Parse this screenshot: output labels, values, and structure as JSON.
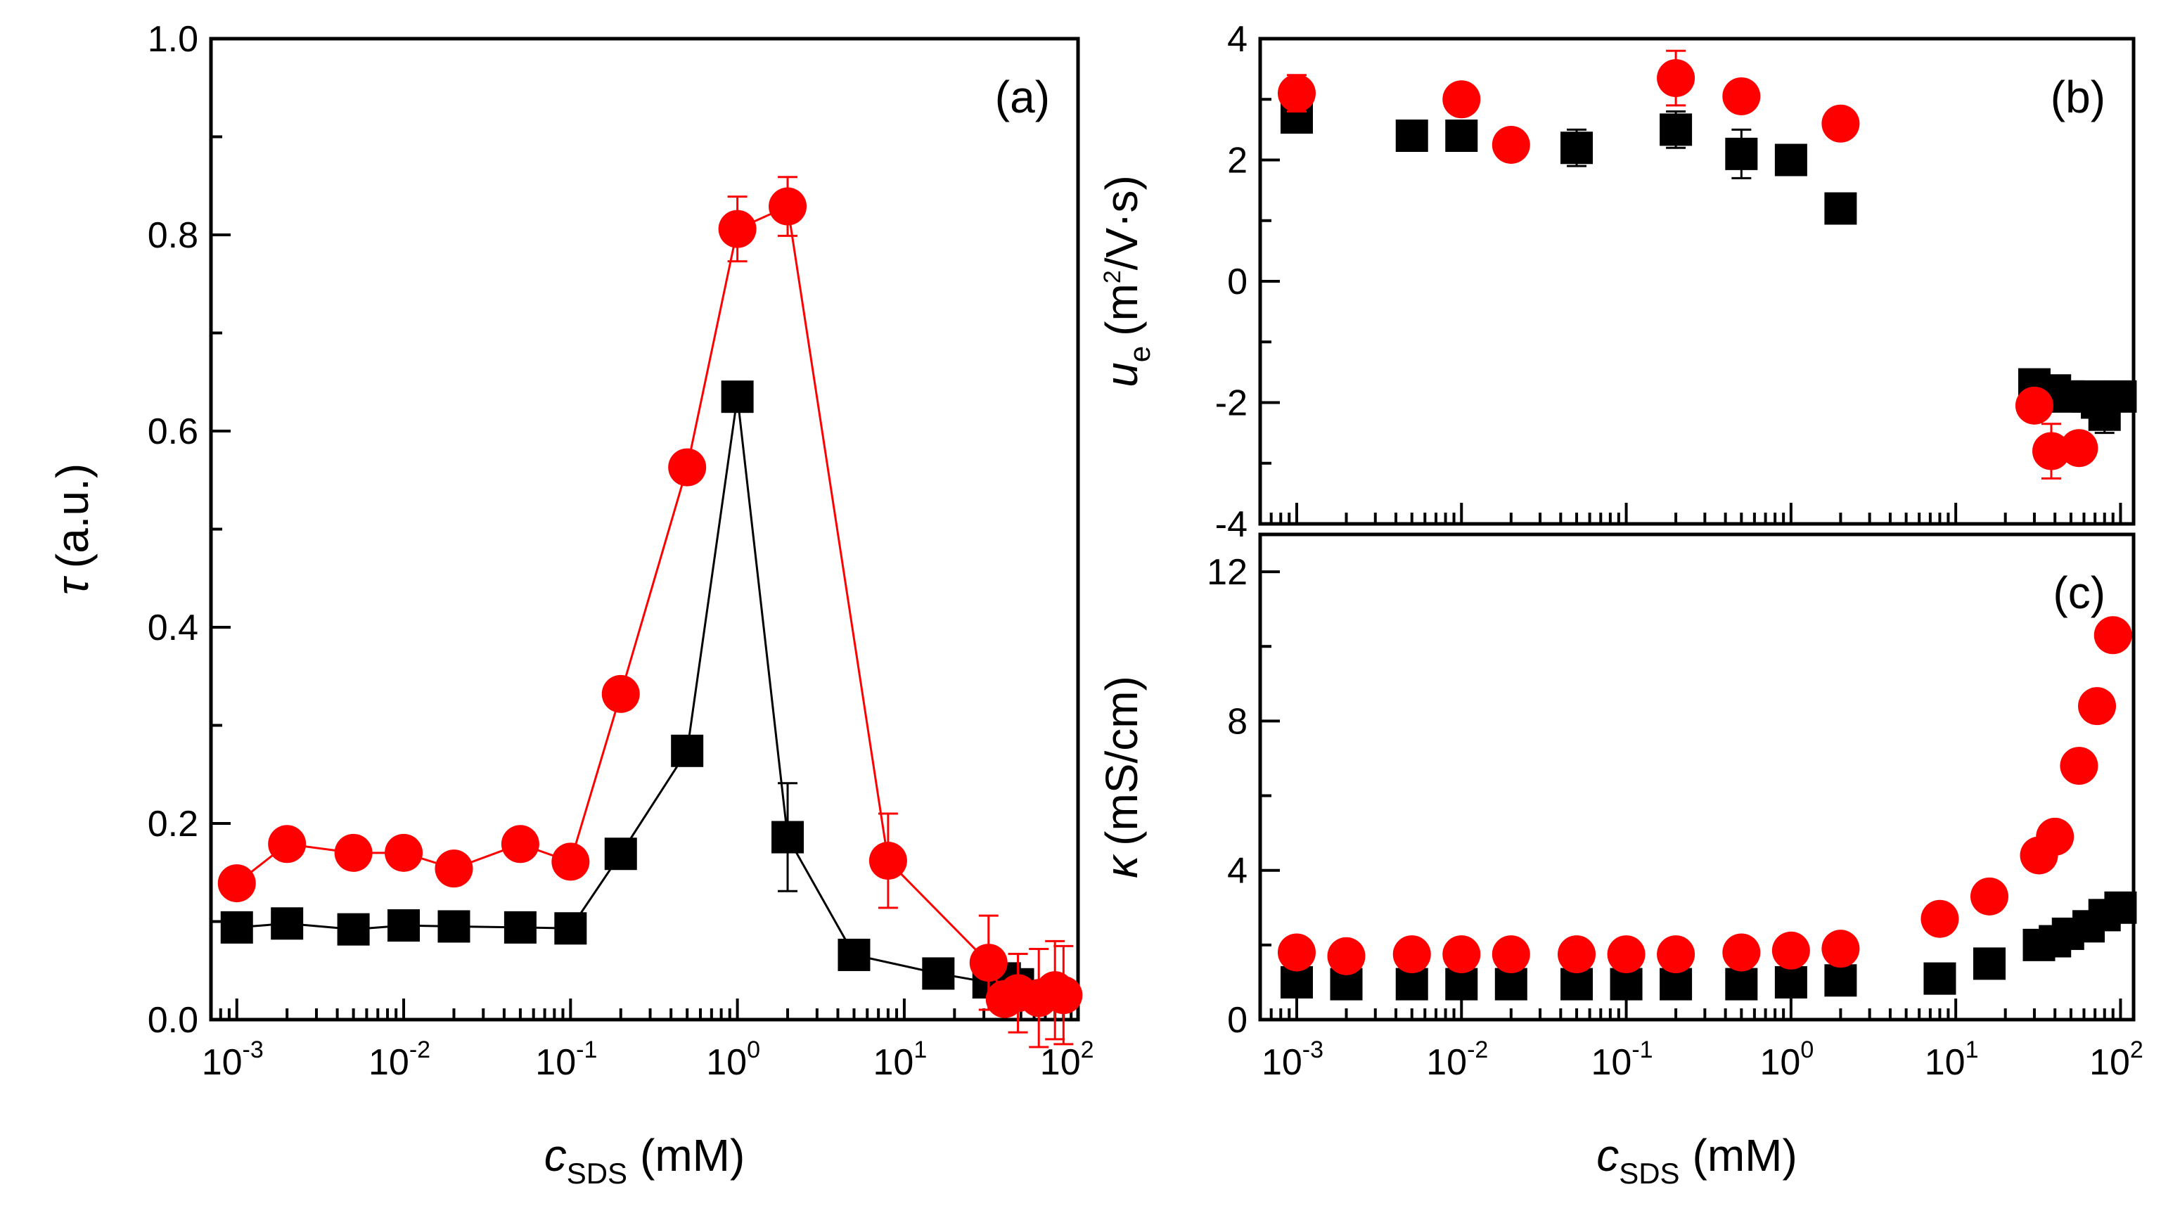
{
  "colors": {
    "black": "#000000",
    "red": "#ff0000"
  },
  "chart_data": [
    {
      "panel": "a",
      "type": "scatter",
      "panel_label": "(a)",
      "xscale": "log",
      "xlim": [
        0.0007,
        110
      ],
      "ylim": [
        0.0,
        1.0
      ],
      "xlabel_main": "c",
      "xlabel_sub": "SDS",
      "xlabel_unit": "(mM)",
      "ylabel_symbol": "τ",
      "ylabel_unit": "(a.u.)",
      "yticks": [
        "0.0",
        "0.2",
        "0.4",
        "0.6",
        "0.8",
        "1.0"
      ],
      "ytick_values": [
        0.0,
        0.2,
        0.4,
        0.6,
        0.8,
        1.0
      ],
      "xticks": [
        {
          "base": "10",
          "exp": "-3",
          "value": 0.001
        },
        {
          "base": "10",
          "exp": "-2",
          "value": 0.01
        },
        {
          "base": "10",
          "exp": "-1",
          "value": 0.1
        },
        {
          "base": "10",
          "exp": "0",
          "value": 1
        },
        {
          "base": "10",
          "exp": "1",
          "value": 10
        },
        {
          "base": "10",
          "exp": "2",
          "value": 100
        }
      ],
      "series": [
        {
          "name": "black squares",
          "marker": "square",
          "color": "#000000",
          "line": true,
          "x": [
            0.001,
            0.002,
            0.005,
            0.01,
            0.02,
            0.05,
            0.1,
            0.2,
            0.5,
            1,
            2,
            5,
            16,
            32,
            40,
            48
          ],
          "y": [
            0.094,
            0.098,
            0.092,
            0.096,
            0.095,
            0.094,
            0.093,
            0.169,
            0.274,
            0.635,
            0.186,
            0.066,
            0.047,
            0.038,
            0.042,
            0.036
          ],
          "err": [
            0,
            0,
            0,
            0,
            0,
            0,
            0,
            0,
            0,
            0,
            0.055,
            0,
            0,
            0.01,
            0.012,
            0.008
          ]
        },
        {
          "name": "red circles",
          "marker": "circle",
          "color": "#ff0000",
          "line": true,
          "x": [
            0.001,
            0.002,
            0.005,
            0.01,
            0.02,
            0.05,
            0.1,
            0.2,
            0.5,
            1,
            2,
            8,
            32,
            40,
            48,
            64,
            80,
            90
          ],
          "y": [
            0.139,
            0.179,
            0.17,
            0.17,
            0.154,
            0.179,
            0.161,
            0.332,
            0.563,
            0.806,
            0.829,
            0.162,
            0.058,
            0.021,
            0.027,
            0.022,
            0.03,
            0.025
          ],
          "err": [
            0,
            0,
            0,
            0,
            0,
            0,
            0,
            0,
            0,
            0.033,
            0.03,
            0.048,
            0.048,
            0.012,
            0.04,
            0.05,
            0.05,
            0.05
          ]
        }
      ]
    },
    {
      "panel": "b",
      "type": "scatter",
      "panel_label": "(b)",
      "xscale": "log",
      "xlim": [
        0.0006,
        120
      ],
      "ylim": [
        -4,
        4
      ],
      "ylabel_main": "u",
      "ylabel_sub": "e",
      "ylabel_unit_pre": "(m",
      "ylabel_unit_sup": "2",
      "ylabel_unit_post": "/V·s)",
      "yticks": [
        "-4",
        "-2",
        "0",
        "2",
        "4"
      ],
      "ytick_values": [
        -4,
        -2,
        0,
        2,
        4
      ],
      "series": [
        {
          "name": "black squares",
          "marker": "square",
          "color": "#000000",
          "line": false,
          "x": [
            0.001,
            0.005,
            0.01,
            0.05,
            0.2,
            0.5,
            1,
            2,
            30,
            40,
            48,
            64,
            72,
            80,
            100
          ],
          "y": [
            2.7,
            2.4,
            2.4,
            2.2,
            2.5,
            2.1,
            2.0,
            1.2,
            -1.7,
            -1.8,
            -1.9,
            -1.9,
            -2.0,
            -2.2,
            -1.9
          ],
          "err": [
            0,
            0,
            0,
            0.3,
            0.3,
            0.4,
            0.2,
            0,
            0.1,
            0.1,
            0.1,
            0.1,
            0.1,
            0.3,
            0.1
          ]
        },
        {
          "name": "red circles",
          "marker": "circle",
          "color": "#ff0000",
          "line": false,
          "x": [
            0.001,
            0.01,
            0.02,
            0.2,
            0.5,
            2,
            30,
            38,
            56
          ],
          "y": [
            3.1,
            3.0,
            2.25,
            3.35,
            3.05,
            2.6,
            -2.05,
            -2.8,
            -2.75
          ],
          "err": [
            0.3,
            0,
            0,
            0.45,
            0.2,
            0,
            0.2,
            0.45,
            0
          ]
        }
      ]
    },
    {
      "panel": "c",
      "type": "scatter",
      "panel_label": "(c)",
      "xscale": "log",
      "xlim": [
        0.0006,
        120
      ],
      "ylim": [
        0,
        13
      ],
      "xlabel_main": "c",
      "xlabel_sub": "SDS",
      "xlabel_unit": "(mM)",
      "ylabel_symbol": "κ",
      "ylabel_unit": "(mS/cm)",
      "yticks": [
        "0",
        "4",
        "8",
        "12"
      ],
      "ytick_values": [
        0,
        4,
        8,
        12
      ],
      "xticks": [
        {
          "base": "10",
          "exp": "-3",
          "value": 0.001
        },
        {
          "base": "10",
          "exp": "-2",
          "value": 0.01
        },
        {
          "base": "10",
          "exp": "-1",
          "value": 0.1
        },
        {
          "base": "10",
          "exp": "0",
          "value": 1
        },
        {
          "base": "10",
          "exp": "1",
          "value": 10
        },
        {
          "base": "10",
          "exp": "2",
          "value": 100
        }
      ],
      "series": [
        {
          "name": "black squares",
          "marker": "square",
          "color": "#000000",
          "line": false,
          "x": [
            0.001,
            0.002,
            0.005,
            0.01,
            0.02,
            0.05,
            0.1,
            0.2,
            0.5,
            1,
            2,
            8,
            16,
            32,
            40,
            48,
            64,
            80,
            100
          ],
          "y": [
            1.0,
            0.95,
            0.95,
            0.95,
            0.95,
            0.95,
            0.95,
            0.95,
            0.95,
            1.0,
            1.05,
            1.1,
            1.5,
            2.0,
            2.1,
            2.3,
            2.5,
            2.8,
            3.0
          ],
          "err": [
            0,
            0,
            0,
            0,
            0,
            0,
            0,
            0,
            0,
            0,
            0,
            0,
            0,
            0,
            0,
            0,
            0,
            0,
            0
          ]
        },
        {
          "name": "red circles",
          "marker": "circle",
          "color": "#ff0000",
          "line": false,
          "x": [
            0.001,
            0.002,
            0.005,
            0.01,
            0.02,
            0.05,
            0.1,
            0.2,
            0.5,
            1,
            2,
            8,
            16,
            32,
            40,
            56,
            72,
            90
          ],
          "y": [
            1.8,
            1.7,
            1.75,
            1.75,
            1.75,
            1.75,
            1.75,
            1.75,
            1.8,
            1.85,
            1.9,
            2.7,
            3.3,
            4.4,
            4.9,
            6.8,
            8.4,
            10.3
          ],
          "err": [
            0,
            0,
            0,
            0,
            0,
            0,
            0,
            0,
            0,
            0,
            0,
            0,
            0,
            0,
            0,
            0,
            0,
            0
          ]
        }
      ]
    }
  ]
}
